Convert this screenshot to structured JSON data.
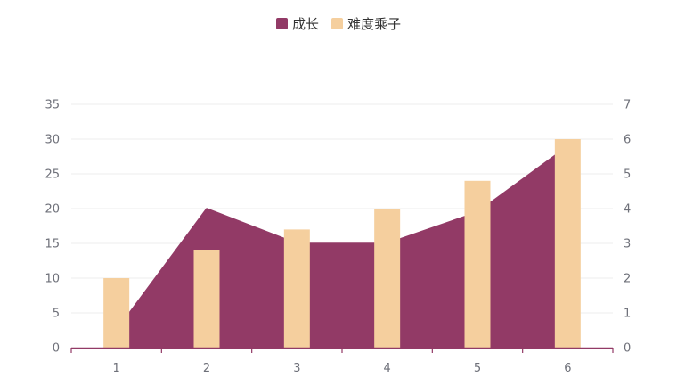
{
  "chart_data": {
    "type": "bar",
    "categories": [
      "1",
      "2",
      "3",
      "4",
      "5",
      "6"
    ],
    "series": [
      {
        "name": "成长",
        "type": "area",
        "axis": "left",
        "color": "#923a66",
        "values": [
          2.5,
          20,
          15,
          15,
          19.5,
          29
        ]
      },
      {
        "name": "难度乘子",
        "type": "bar",
        "axis": "right",
        "color": "#f5cf9e",
        "values": [
          2,
          2.8,
          3.4,
          4,
          4.8,
          6
        ]
      }
    ],
    "y_left": {
      "min": 0,
      "max": 35,
      "ticks": [
        0,
        5,
        10,
        15,
        20,
        25,
        30,
        35
      ]
    },
    "y_right": {
      "min": 0,
      "max": 7,
      "ticks": [
        0,
        1,
        2,
        3,
        4,
        5,
        6,
        7
      ]
    },
    "legend_position": "top-center",
    "grid": true,
    "axis_color": "#923a66",
    "grid_color": "#eeeeee",
    "tick_label_color": "#6e7079"
  }
}
